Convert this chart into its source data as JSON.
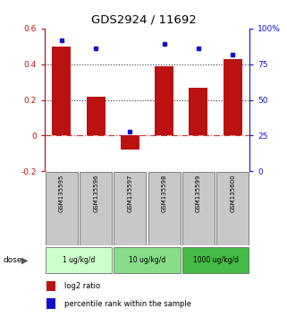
{
  "title": "GDS2924 / 11692",
  "categories": [
    "GSM135595",
    "GSM135596",
    "GSM135597",
    "GSM135598",
    "GSM135599",
    "GSM135600"
  ],
  "log2_ratio": [
    0.5,
    0.22,
    -0.08,
    0.39,
    0.27,
    0.43
  ],
  "percentile_rank": [
    92,
    86,
    28,
    89,
    86,
    82
  ],
  "bar_color": "#bb1111",
  "dot_color": "#1111cc",
  "ylim_left": [
    -0.2,
    0.6
  ],
  "ylim_right": [
    0,
    100
  ],
  "yticks_left": [
    -0.2,
    0.0,
    0.2,
    0.4,
    0.6
  ],
  "ytick_labels_left": [
    "-0.2",
    "0",
    "0.2",
    "0.4",
    "0.6"
  ],
  "yticks_right": [
    0,
    25,
    50,
    75,
    100
  ],
  "ytick_labels_right": [
    "0",
    "25",
    "50",
    "75",
    "100%"
  ],
  "dose_groups": [
    {
      "label": "1 ug/kg/d",
      "color": "#ccffcc",
      "start": 0,
      "end": 2
    },
    {
      "label": "10 ug/kg/d",
      "color": "#88dd88",
      "start": 2,
      "end": 4
    },
    {
      "label": "1000 ug/kg/d",
      "color": "#44bb44",
      "start": 4,
      "end": 6
    }
  ],
  "legend_items": [
    {
      "label": "log2 ratio",
      "color": "#bb1111"
    },
    {
      "label": "percentile rank within the sample",
      "color": "#1111cc"
    }
  ],
  "bar_width": 0.55,
  "sample_box_color": "#c8c8c8",
  "hline_zero_color": "#cc3333",
  "hline_color": "#333333"
}
